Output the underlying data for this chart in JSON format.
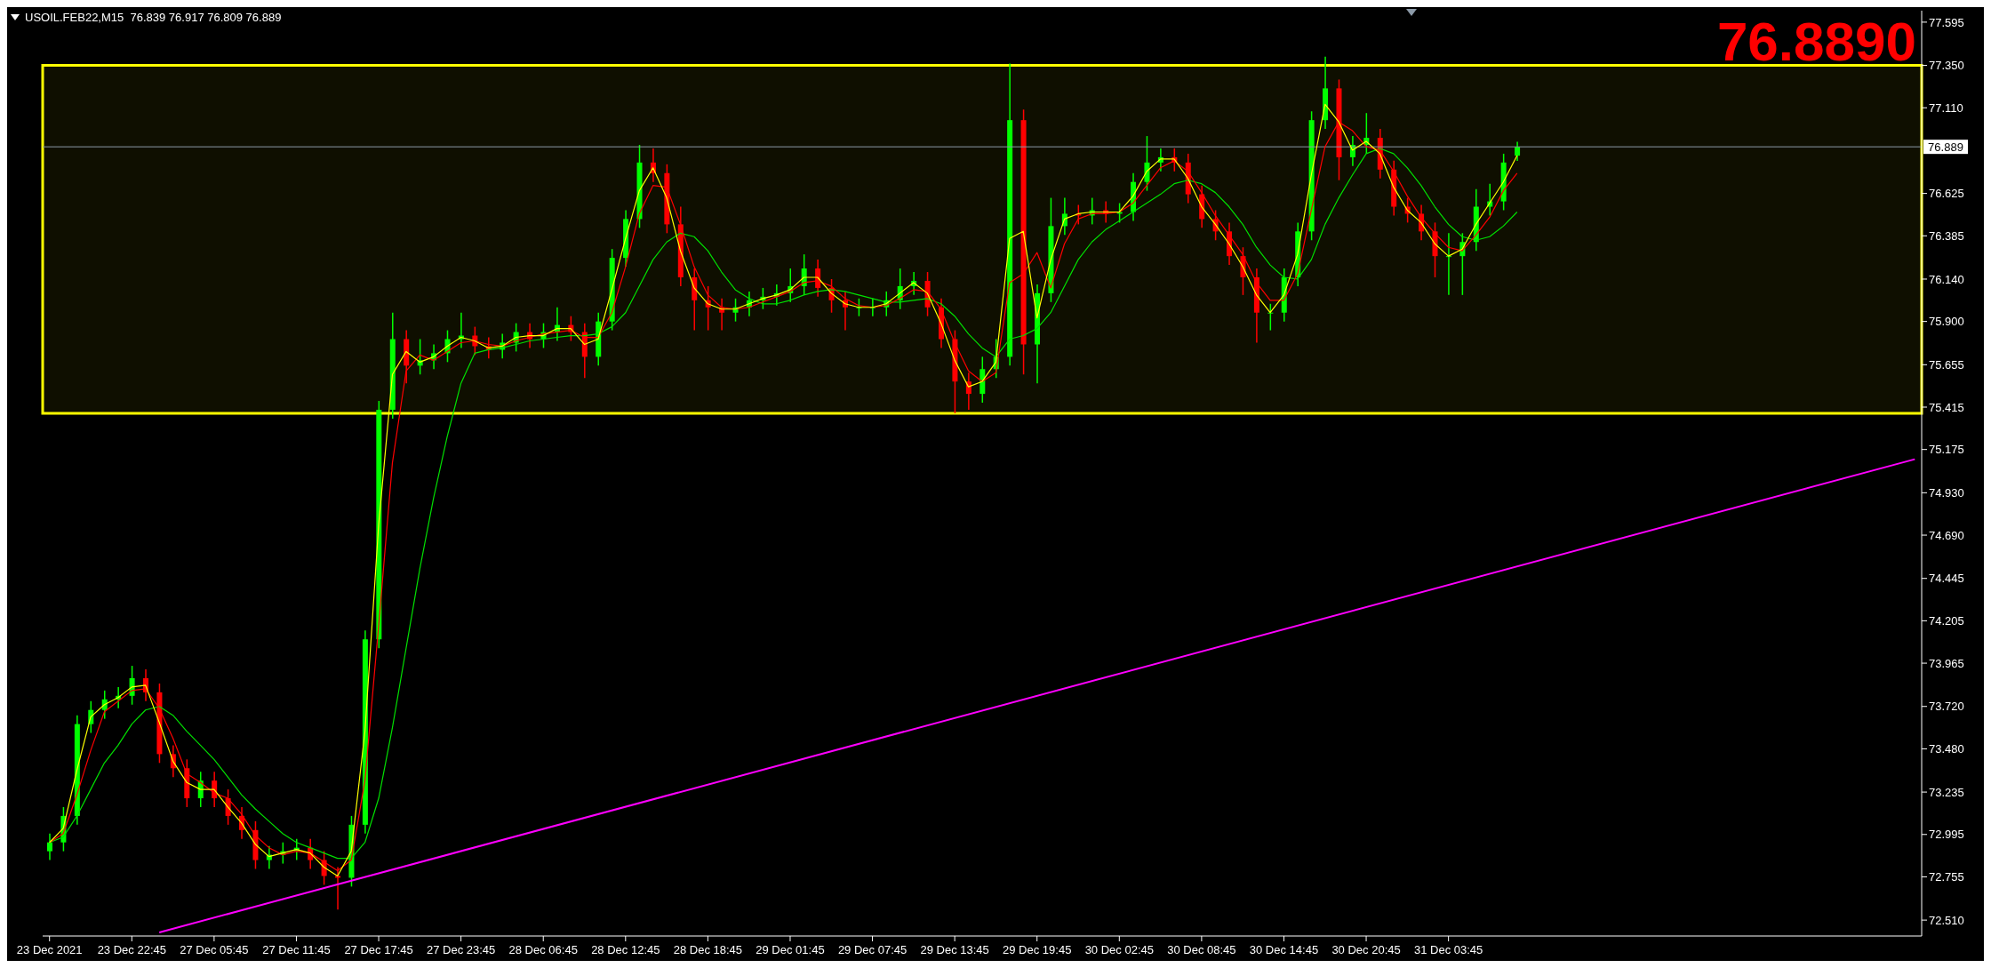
{
  "chart_data": {
    "type": "candlestick",
    "title": "USOIL.FEB22,M15  76.839 76.917 76.809 76.889",
    "categories": [
      "23 Dec 2021",
      null,
      null,
      null,
      null,
      null,
      "23 Dec 22:45",
      null,
      null,
      null,
      null,
      null,
      "27 Dec 05:45",
      null,
      null,
      null,
      null,
      null,
      "27 Dec 11:45",
      null,
      null,
      null,
      null,
      null,
      "27 Dec 17:45",
      null,
      null,
      null,
      null,
      null,
      "27 Dec 23:45",
      null,
      null,
      null,
      null,
      null,
      "28 Dec 06:45",
      null,
      null,
      null,
      null,
      null,
      "28 Dec 12:45",
      null,
      null,
      null,
      null,
      null,
      "28 Dec 18:45",
      null,
      null,
      null,
      null,
      null,
      "29 Dec 01:45",
      null,
      null,
      null,
      null,
      null,
      "29 Dec 07:45",
      null,
      null,
      null,
      null,
      null,
      "29 Dec 13:45",
      null,
      null,
      null,
      null,
      null,
      "29 Dec 19:45",
      null,
      null,
      null,
      null,
      null,
      "30 Dec 02:45",
      null,
      null,
      null,
      null,
      null,
      "30 Dec 08:45",
      null,
      null,
      null,
      null,
      null,
      "30 Dec 14:45",
      null,
      null,
      null,
      null,
      null,
      "30 Dec 20:45",
      null,
      null,
      null,
      null,
      null,
      "31 Dec 03:45",
      null,
      null,
      null,
      null,
      null,
      null,
      null,
      null,
      null,
      null,
      null,
      null,
      null,
      null,
      null,
      null,
      null,
      null,
      null,
      null,
      null,
      null,
      null,
      null,
      null,
      null,
      null,
      null,
      null,
      null,
      null,
      null,
      null,
      null
    ],
    "ohlc": [
      [
        72.9,
        73.0,
        72.85,
        72.95
      ],
      [
        72.95,
        73.15,
        72.9,
        73.1
      ],
      [
        73.1,
        73.67,
        73.05,
        73.62
      ],
      [
        73.62,
        73.75,
        73.57,
        73.7
      ],
      [
        73.7,
        73.81,
        73.65,
        73.76
      ],
      [
        73.76,
        73.83,
        73.71,
        73.78
      ],
      [
        73.78,
        73.95,
        73.73,
        73.88
      ],
      [
        73.88,
        73.93,
        73.75,
        73.8
      ],
      [
        73.8,
        73.85,
        73.4,
        73.45
      ],
      [
        73.45,
        73.5,
        73.32,
        73.37
      ],
      [
        73.37,
        73.42,
        73.15,
        73.2
      ],
      [
        73.2,
        73.35,
        73.15,
        73.3
      ],
      [
        73.3,
        73.35,
        73.15,
        73.2
      ],
      [
        73.2,
        73.25,
        73.05,
        73.1
      ],
      [
        73.1,
        73.15,
        72.97,
        73.02
      ],
      [
        73.02,
        73.07,
        72.8,
        72.85
      ],
      [
        72.85,
        72.93,
        72.8,
        72.88
      ],
      [
        72.88,
        72.95,
        72.83,
        72.9
      ],
      [
        72.9,
        72.97,
        72.85,
        72.92
      ],
      [
        72.92,
        72.97,
        72.8,
        72.85
      ],
      [
        72.85,
        72.9,
        72.71,
        72.76
      ],
      [
        72.76,
        72.81,
        72.57,
        72.75
      ],
      [
        72.75,
        73.1,
        72.7,
        73.05
      ],
      [
        73.05,
        74.15,
        73.0,
        74.1
      ],
      [
        74.1,
        75.45,
        74.05,
        75.4
      ],
      [
        75.4,
        75.95,
        75.35,
        75.8
      ],
      [
        75.8,
        75.85,
        75.55,
        75.65
      ],
      [
        75.65,
        75.8,
        75.6,
        75.68
      ],
      [
        75.68,
        75.77,
        75.63,
        75.72
      ],
      [
        75.72,
        75.85,
        75.67,
        75.8
      ],
      [
        75.8,
        75.95,
        75.75,
        75.82
      ],
      [
        75.82,
        75.87,
        75.71,
        75.76
      ],
      [
        75.76,
        75.81,
        75.69,
        75.74
      ],
      [
        75.74,
        75.83,
        75.69,
        75.78
      ],
      [
        75.78,
        75.89,
        75.73,
        75.84
      ],
      [
        75.84,
        75.89,
        75.75,
        75.8
      ],
      [
        75.8,
        75.89,
        75.75,
        75.84
      ],
      [
        75.84,
        75.98,
        75.79,
        75.88
      ],
      [
        75.88,
        75.93,
        75.79,
        75.84
      ],
      [
        75.84,
        75.89,
        75.58,
        75.7
      ],
      [
        75.7,
        75.95,
        75.65,
        75.9
      ],
      [
        75.9,
        76.31,
        75.85,
        76.26
      ],
      [
        76.26,
        76.53,
        76.21,
        76.48
      ],
      [
        76.48,
        76.9,
        76.43,
        76.8
      ],
      [
        76.8,
        76.88,
        76.69,
        76.74
      ],
      [
        76.74,
        76.79,
        76.4,
        76.45
      ],
      [
        76.45,
        76.55,
        76.1,
        76.15
      ],
      [
        76.15,
        76.2,
        75.85,
        76.02
      ],
      [
        76.02,
        76.1,
        75.85,
        75.98
      ],
      [
        75.98,
        76.03,
        75.85,
        75.95
      ],
      [
        75.95,
        76.03,
        75.9,
        75.98
      ],
      [
        75.98,
        76.07,
        75.93,
        76.02
      ],
      [
        76.02,
        76.09,
        75.97,
        76.04
      ],
      [
        76.04,
        76.11,
        75.99,
        76.06
      ],
      [
        76.06,
        76.2,
        76.01,
        76.1
      ],
      [
        76.1,
        76.28,
        76.05,
        76.2
      ],
      [
        76.2,
        76.25,
        76.04,
        76.09
      ],
      [
        76.09,
        76.14,
        75.95,
        76.02
      ],
      [
        76.02,
        76.07,
        75.85,
        75.98
      ],
      [
        75.98,
        76.03,
        75.93,
        75.98
      ],
      [
        75.98,
        76.03,
        75.93,
        75.98
      ],
      [
        75.98,
        76.07,
        75.93,
        76.02
      ],
      [
        76.02,
        76.2,
        75.97,
        76.1
      ],
      [
        76.1,
        76.18,
        76.05,
        76.13
      ],
      [
        76.13,
        76.18,
        75.93,
        75.98
      ],
      [
        75.98,
        76.03,
        75.75,
        75.8
      ],
      [
        75.8,
        75.85,
        75.38,
        75.56
      ],
      [
        75.56,
        75.61,
        75.4,
        75.49
      ],
      [
        75.49,
        75.7,
        75.44,
        75.63
      ],
      [
        75.63,
        75.8,
        75.58,
        75.7
      ],
      [
        75.7,
        77.36,
        75.65,
        77.04
      ],
      [
        77.04,
        77.1,
        75.6,
        75.77
      ],
      [
        75.77,
        76.11,
        75.55,
        76.06
      ],
      [
        76.06,
        76.6,
        76.01,
        76.44
      ],
      [
        76.44,
        76.6,
        76.39,
        76.51
      ],
      [
        76.51,
        76.56,
        76.45,
        76.5
      ],
      [
        76.5,
        76.6,
        76.45,
        76.53
      ],
      [
        76.53,
        76.58,
        76.46,
        76.51
      ],
      [
        76.51,
        76.57,
        76.46,
        76.52
      ],
      [
        76.52,
        76.74,
        76.47,
        76.69
      ],
      [
        76.69,
        76.95,
        76.64,
        76.8
      ],
      [
        76.8,
        76.88,
        76.75,
        76.83
      ],
      [
        76.83,
        76.88,
        76.75,
        76.8
      ],
      [
        76.8,
        76.85,
        76.57,
        76.62
      ],
      [
        76.62,
        76.67,
        76.43,
        76.48
      ],
      [
        76.48,
        76.53,
        76.36,
        76.41
      ],
      [
        76.41,
        76.46,
        76.22,
        76.27
      ],
      [
        76.27,
        76.32,
        76.05,
        76.15
      ],
      [
        76.15,
        76.2,
        75.78,
        75.95
      ],
      [
        75.95,
        76.0,
        75.85,
        75.95
      ],
      [
        75.95,
        76.2,
        75.9,
        76.15
      ],
      [
        76.15,
        76.46,
        76.1,
        76.41
      ],
      [
        76.41,
        77.09,
        76.36,
        77.04
      ],
      [
        77.04,
        77.4,
        76.99,
        77.22
      ],
      [
        77.22,
        77.27,
        76.7,
        76.83
      ],
      [
        76.83,
        76.95,
        76.78,
        76.9
      ],
      [
        76.9,
        77.08,
        76.85,
        76.94
      ],
      [
        76.94,
        76.99,
        76.71,
        76.76
      ],
      [
        76.76,
        76.81,
        76.5,
        76.55
      ],
      [
        76.55,
        76.6,
        76.46,
        76.51
      ],
      [
        76.51,
        76.56,
        76.36,
        76.41
      ],
      [
        76.41,
        76.46,
        76.15,
        76.27
      ],
      [
        76.27,
        76.4,
        76.05,
        76.27
      ],
      [
        76.27,
        76.4,
        76.05,
        76.35
      ],
      [
        76.35,
        76.65,
        76.3,
        76.55
      ],
      [
        76.55,
        76.68,
        76.5,
        76.58
      ],
      [
        76.58,
        76.85,
        76.53,
        76.8
      ],
      [
        76.839,
        76.917,
        76.809,
        76.889
      ],
      null,
      null,
      null,
      null,
      null,
      null,
      null,
      null,
      null,
      null,
      null,
      null,
      null,
      null,
      null,
      null,
      null,
      null,
      null,
      null,
      null,
      null,
      null,
      null,
      null,
      null,
      null,
      null,
      null
    ],
    "colors": [
      "#00ff00",
      "#00ff00",
      "#00ff00",
      "#00ff00",
      "#00ff00",
      "#00ff00",
      "#00ff00",
      "#ff0000",
      "#ff0000",
      "#ff0000",
      "#ff0000",
      "#00ff00",
      "#ff0000",
      "#ff0000",
      "#ff0000",
      "#ff0000",
      "#00ff00",
      "#00ff00",
      "#00ff00",
      "#ff0000",
      "#ff0000",
      "#ff0000",
      "#00ff00",
      "#00ff00",
      "#00ff00",
      "#00ff00",
      "#ff0000",
      "#00ff00",
      "#00ff00",
      "#00ff00",
      "#00ff00",
      "#ff0000",
      "#ff0000",
      "#00ff00",
      "#00ff00",
      "#ff0000",
      "#00ff00",
      "#00ff00",
      "#ff0000",
      "#ff0000",
      "#00ff00",
      "#00ff00",
      "#00ff00",
      "#00ff00",
      "#ff0000",
      "#ff0000",
      "#ff0000",
      "#ff0000",
      "#ff0000",
      "#ff0000",
      "#00ff00",
      "#00ff00",
      "#00ff00",
      "#00ff00",
      "#00ff00",
      "#00ff00",
      "#ff0000",
      "#ff0000",
      "#ff0000",
      "#00ff00",
      "#00ff00",
      "#00ff00",
      "#00ff00",
      "#00ff00",
      "#ff0000",
      "#ff0000",
      "#ff0000",
      "#ff0000",
      "#00ff00",
      "#00ff00",
      "#00ff00",
      "#ff0000",
      "#00ff00",
      "#00ff00",
      "#00ff00",
      "#ff0000",
      "#00ff00",
      "#ff0000",
      "#00ff00",
      "#00ff00",
      "#00ff00",
      "#00ff00",
      "#ff0000",
      "#ff0000",
      "#ff0000",
      "#ff0000",
      "#ff0000",
      "#ff0000",
      "#ff0000",
      "#00ff00",
      "#00ff00",
      "#00ff00",
      "#00ff00",
      "#00ff00",
      "#ff0000",
      "#00ff00",
      "#00ff00",
      "#ff0000",
      "#ff0000",
      "#ff0000",
      "#ff0000",
      "#ff0000",
      "#00ff00",
      "#00ff00",
      "#00ff00",
      "#00ff00",
      "#00ff00",
      "#00ff00",
      null,
      null,
      null,
      null,
      null,
      null,
      null,
      null,
      null,
      null,
      null,
      null,
      null,
      null,
      null,
      null,
      null,
      null,
      null,
      null,
      null,
      null,
      null,
      null,
      null,
      null,
      null,
      null,
      null
    ],
    "series": [
      {
        "type": "line",
        "color": "#00e000",
        "values": [
          72.95,
          72.98,
          73.1,
          73.25,
          73.4,
          73.5,
          73.62,
          73.7,
          73.72,
          73.67,
          73.58,
          73.5,
          73.42,
          73.32,
          73.22,
          73.14,
          73.07,
          73.0,
          72.95,
          72.92,
          72.89,
          72.86,
          72.86,
          72.95,
          73.2,
          73.6,
          74.05,
          74.5,
          74.9,
          75.25,
          75.55,
          75.72,
          75.74,
          75.75,
          75.77,
          75.79,
          75.8,
          75.81,
          75.82,
          75.82,
          75.83,
          75.87,
          75.95,
          76.1,
          76.25,
          76.35,
          76.4,
          76.38,
          76.3,
          76.18,
          76.08,
          76.03,
          76.0,
          76.0,
          76.02,
          76.05,
          76.07,
          76.08,
          76.07,
          76.05,
          76.03,
          76.01,
          76.01,
          76.02,
          76.03,
          76.0,
          75.93,
          75.83,
          75.75,
          75.7,
          75.8,
          75.82,
          75.86,
          75.95,
          76.1,
          76.25,
          76.35,
          76.42,
          76.47,
          76.52,
          76.57,
          76.62,
          76.68,
          76.7,
          76.68,
          76.63,
          76.55,
          76.45,
          76.32,
          76.22,
          76.15,
          76.14,
          76.25,
          76.45,
          76.6,
          76.73,
          76.85,
          76.88,
          76.85,
          76.77,
          76.67,
          76.55,
          76.45,
          76.38,
          76.36,
          76.38,
          76.44,
          76.52,
          null,
          null,
          null,
          null,
          null,
          null,
          null,
          null,
          null,
          null,
          null,
          null,
          null,
          null,
          null,
          null,
          null,
          null,
          null,
          null,
          null,
          null,
          null,
          null,
          null,
          null,
          null,
          null,
          null
        ]
      },
      {
        "type": "line",
        "color": "#ff0000",
        "values": [
          72.95,
          73.0,
          73.22,
          73.47,
          73.69,
          73.75,
          73.81,
          73.82,
          73.71,
          73.54,
          73.34,
          73.29,
          73.23,
          73.2,
          73.11,
          72.99,
          72.92,
          72.88,
          72.9,
          72.89,
          72.84,
          72.79,
          72.85,
          73.3,
          74.18,
          75.1,
          75.62,
          75.71,
          75.68,
          75.73,
          75.78,
          75.79,
          75.77,
          75.76,
          75.79,
          75.81,
          75.83,
          75.84,
          75.85,
          75.81,
          75.81,
          75.95,
          76.21,
          76.51,
          76.67,
          76.66,
          76.45,
          76.21,
          76.05,
          75.98,
          75.97,
          75.98,
          76.01,
          76.04,
          76.07,
          76.12,
          76.13,
          76.1,
          76.03,
          75.99,
          75.98,
          75.99,
          76.03,
          76.08,
          76.07,
          75.97,
          75.78,
          75.62,
          75.56,
          75.61,
          76.12,
          76.17,
          76.29,
          76.09,
          76.34,
          76.48,
          76.51,
          76.51,
          76.52,
          76.57,
          76.67,
          76.77,
          76.81,
          76.75,
          76.63,
          76.5,
          76.39,
          76.28,
          76.12,
          76.02,
          76.02,
          76.17,
          76.53,
          76.89,
          77.03,
          76.98,
          76.89,
          76.87,
          76.75,
          76.61,
          76.49,
          76.4,
          76.32,
          76.3,
          76.39,
          76.49,
          76.64,
          76.74,
          null,
          null,
          null,
          null,
          null,
          null,
          null,
          null,
          null,
          null,
          null,
          null,
          null,
          null,
          null,
          null,
          null,
          null,
          null,
          null,
          null,
          null,
          null,
          null,
          null,
          null,
          null,
          null,
          null
        ]
      },
      {
        "type": "line",
        "color": "#ffff00",
        "values": [
          72.95,
          73.03,
          73.36,
          73.66,
          73.73,
          73.77,
          73.83,
          73.84,
          73.63,
          73.41,
          73.29,
          73.25,
          73.25,
          73.15,
          73.06,
          72.94,
          72.87,
          72.89,
          72.91,
          72.89,
          72.81,
          72.76,
          72.9,
          73.58,
          74.75,
          75.6,
          75.73,
          75.67,
          75.7,
          75.76,
          75.81,
          75.79,
          75.75,
          75.76,
          75.81,
          75.82,
          75.82,
          75.86,
          75.86,
          75.77,
          75.8,
          76.08,
          76.37,
          76.64,
          76.77,
          76.6,
          76.3,
          76.09,
          76.0,
          75.97,
          75.97,
          76.0,
          76.03,
          76.05,
          76.08,
          76.15,
          76.15,
          76.06,
          76.0,
          75.98,
          75.98,
          76.0,
          76.06,
          76.12,
          76.06,
          75.89,
          75.68,
          75.53,
          75.56,
          75.67,
          76.37,
          76.41,
          75.92,
          76.25,
          76.48,
          76.51,
          76.52,
          76.52,
          76.52,
          76.61,
          76.75,
          76.82,
          76.82,
          76.71,
          76.55,
          76.45,
          76.34,
          76.21,
          76.05,
          75.95,
          76.05,
          76.28,
          76.73,
          77.13,
          77.03,
          76.87,
          76.92,
          76.85,
          76.66,
          76.53,
          76.46,
          76.34,
          76.27,
          76.31,
          76.45,
          76.57,
          76.69,
          76.84,
          null,
          null,
          null,
          null,
          null,
          null,
          null,
          null,
          null,
          null,
          null,
          null,
          null,
          null,
          null,
          null,
          null,
          null,
          null,
          null,
          null,
          null,
          null,
          null,
          null,
          null,
          null,
          null,
          null
        ]
      },
      {
        "type": "line",
        "color": "#ff00ff",
        "values": [
          null,
          null,
          null,
          null,
          null,
          null,
          null,
          null,
          72.44,
          null,
          null,
          null,
          null,
          null,
          null,
          null,
          null,
          null,
          null,
          null,
          null,
          null,
          null,
          null,
          null,
          null,
          null,
          null,
          null,
          null,
          null,
          null,
          null,
          null,
          null,
          null,
          null,
          null,
          null,
          null,
          null,
          null,
          null,
          null,
          null,
          null,
          null,
          null,
          null,
          null,
          null,
          null,
          null,
          null,
          null,
          null,
          null,
          null,
          null,
          null,
          null,
          null,
          null,
          null,
          null,
          null,
          null,
          null,
          null,
          null,
          null,
          null,
          null,
          null,
          null,
          null,
          null,
          null,
          null,
          null,
          null,
          null,
          null,
          null,
          null,
          null,
          null,
          null,
          null,
          null,
          null,
          null,
          null,
          null,
          null,
          null,
          null,
          null,
          null,
          null,
          null,
          null,
          null,
          null,
          null,
          null,
          null,
          null,
          null,
          null,
          null,
          null,
          null,
          null,
          null,
          null,
          null,
          null,
          null,
          null,
          null,
          null,
          null,
          null,
          null,
          null,
          null,
          null,
          null,
          null,
          null,
          null,
          null,
          null,
          null,
          null,
          75.12
        ]
      }
    ],
    "ylim": [
      72.42,
      77.66
    ],
    "yticks": [
      77.595,
      {
        "value": 77.35,
        "label": "77.350"
      },
      {
        "value": 77.11,
        "label": "77.110"
      },
      76.625,
      76.385,
      {
        "value": 76.14,
        "label": "76.140"
      },
      {
        "value": 75.9,
        "label": "75.900"
      },
      75.655,
      75.415,
      75.175,
      {
        "value": 74.93,
        "label": "74.930"
      },
      {
        "value": 74.69,
        "label": "74.690"
      },
      74.445,
      74.205,
      73.965,
      {
        "value": 73.72,
        "label": "73.720"
      },
      {
        "value": 73.48,
        "label": "73.480"
      },
      73.235,
      72.995,
      72.755,
      {
        "value": 72.51,
        "label": "72.510"
      }
    ],
    "ref_lines": [
      {
        "axis": "y",
        "value": 76.889,
        "label": "76.889",
        "color": "#8c9aa8"
      }
    ],
    "bands": [
      {
        "axis": "y",
        "from": 75.38,
        "to": 77.35,
        "color": "#ffff00"
      }
    ],
    "annotations": [
      "76.8890"
    ],
    "grid": false
  }
}
